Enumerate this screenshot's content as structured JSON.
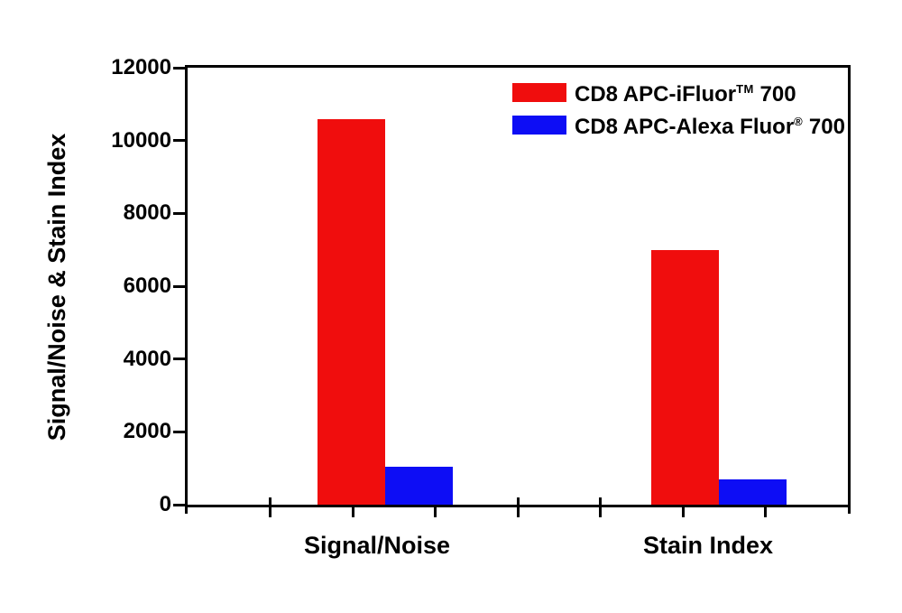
{
  "chart_data": {
    "type": "bar",
    "categories": [
      "Signal/Noise",
      "Stain Index"
    ],
    "series": [
      {
        "name": "CD8 APC-iFluor TM 700",
        "color": "#f00d0d",
        "values": [
          10600,
          7000
        ]
      },
      {
        "name": "CD8 APC-Alexa Fluor (R) 700",
        "color": "#0d0df5",
        "values": [
          1050,
          700
        ]
      }
    ],
    "ylabel": "Signal/Noise & Stain Index",
    "xlabel": "",
    "ylim": [
      0,
      12000
    ],
    "yticks": [
      0,
      2000,
      4000,
      6000,
      8000,
      10000,
      12000
    ],
    "ytick_labels": [
      "0",
      "2000",
      "4000",
      "6000",
      "8000",
      "10000",
      "12000"
    ],
    "grid": false,
    "legend_position": "top-right-inside",
    "frame": "full-box",
    "tick_direction": "out"
  },
  "legend": {
    "items": [
      {
        "prefix": "CD8 APC-iFluor",
        "superscript": "TM",
        "suffix": " 700",
        "color": "#f00d0d"
      },
      {
        "prefix": "CD8 APC-Alexa Fluor",
        "superscript": "®",
        "suffix": " 700",
        "color": "#0d0df5"
      }
    ]
  },
  "colors": {
    "red_series": "#f00d0d",
    "blue_series": "#0d0df5",
    "axis": "#000000",
    "background": "#ffffff"
  }
}
